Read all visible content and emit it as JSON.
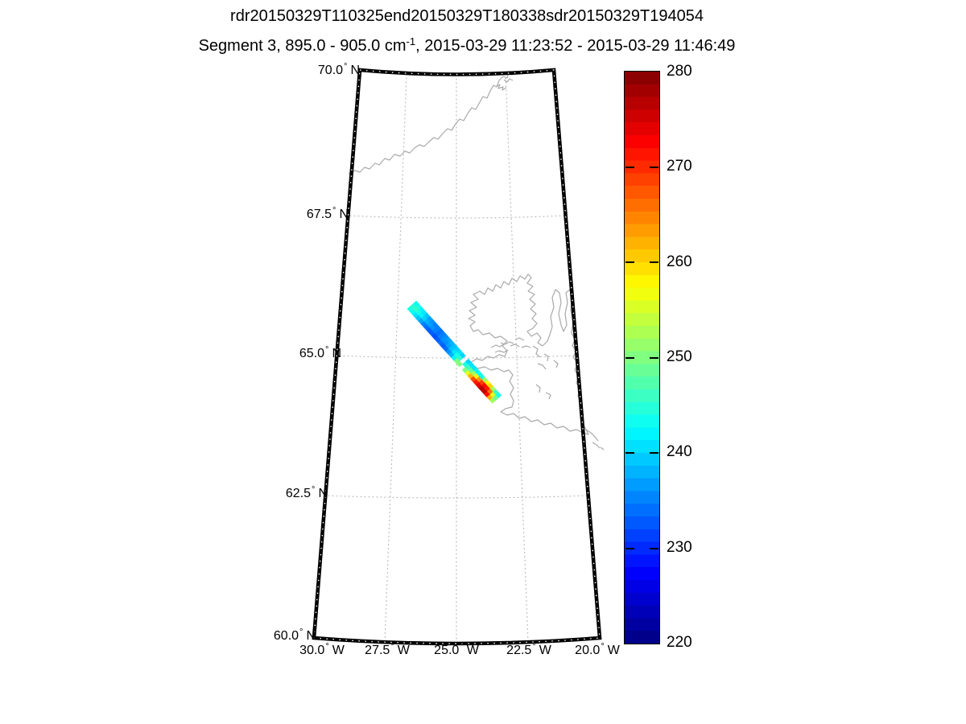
{
  "figure": {
    "title_line1": "rdr20150329T110325end20150329T180338sdr20150329T194054",
    "title_line2_pre": "Segment 3, 895.0 - 905.0 cm",
    "title_line2_sup": "-1",
    "title_line2_post": ", 2015-03-29 11:23:52 - 2015-03-29 11:46:49"
  },
  "map": {
    "lat_labels": [
      {
        "value": "70.0",
        "deg": "°",
        "dir": "N"
      },
      {
        "value": "67.5",
        "deg": "°",
        "dir": "N"
      },
      {
        "value": "65.0",
        "deg": "°",
        "dir": "N"
      },
      {
        "value": "62.5",
        "deg": "°",
        "dir": "N"
      },
      {
        "value": "60.0",
        "deg": "°",
        "dir": "N"
      }
    ],
    "lon_labels": [
      {
        "value": "30.0",
        "deg": "°",
        "dir": "W"
      },
      {
        "value": "27.5",
        "deg": "°",
        "dir": "W"
      },
      {
        "value": "25.0",
        "deg": "°",
        "dir": "W"
      },
      {
        "value": "22.5",
        "deg": "°",
        "dir": "W"
      },
      {
        "value": "20.0",
        "deg": "°",
        "dir": "W"
      }
    ],
    "coastline_color": "#a9a9a9",
    "grid_color": "#bcbcbc",
    "frame_color": "#000000"
  },
  "colorbar": {
    "labels": [
      "280",
      "270",
      "260",
      "250",
      "240",
      "230",
      "220"
    ]
  },
  "chart_data": {
    "type": "heatmap",
    "title": "rdr20150329T110325end20150329T180338sdr20150329T194054",
    "subtitle": "Segment 3, 895.0 - 905.0 cm-1, 2015-03-29 11:23:52 - 2015-03-29 11:46:49",
    "map_extent": {
      "lat_n": [
        60.0,
        70.0
      ],
      "lon_w": [
        30.0,
        20.0
      ]
    },
    "lat_gridlines": [
      62.5,
      65.0,
      67.5
    ],
    "lon_gridlines": [
      27.5,
      25.0,
      22.5
    ],
    "projection": "conic, pole up, central meridian 25.0 W",
    "colorbar": {
      "min": 220,
      "max": 280,
      "ticks": [
        220,
        230,
        240,
        250,
        260,
        270,
        280
      ],
      "colormap": "jet",
      "bands": 45
    },
    "coastlines": [
      "Greenland southeast coast crossing upper-left of map",
      "Iceland with Westfjords fjords, north peninsulas, southeast coast near right frame"
    ],
    "swath": {
      "description": "Diagonal NW-to-SE satellite measurement swath over west Iceland; values in colorbar units (220-280); null = missing scan gap",
      "col_order": "NE-edge to SW-edge",
      "origin": [
        517,
        374
      ],
      "angle_deg": 48,
      "cell_len": 5.1,
      "cell_w": 5.0,
      "cols": 3,
      "rows": [
        [
          243,
          245,
          244
        ],
        [
          244,
          246,
          243
        ],
        [
          242,
          244,
          241
        ],
        [
          241,
          242,
          239
        ],
        [
          239,
          240,
          237
        ],
        [
          237,
          238,
          235
        ],
        [
          236,
          237,
          234
        ],
        [
          235,
          236,
          233
        ],
        [
          235,
          235,
          233
        ],
        [
          234,
          234,
          232
        ],
        [
          235,
          235,
          233
        ],
        [
          236,
          236,
          234
        ],
        [
          237,
          236,
          233
        ],
        [
          238,
          237,
          234
        ],
        [
          239,
          239,
          236
        ],
        [
          240,
          241,
          238
        ],
        [
          241,
          244,
          242
        ],
        [
          240,
          245,
          250
        ],
        [
          null,
          null,
          250
        ],
        [
          240,
          244,
          null
        ],
        [
          241,
          246,
          250
        ],
        [
          241,
          248,
          256
        ],
        [
          242,
          252,
          262
        ],
        [
          243,
          258,
          268
        ],
        [
          244,
          264,
          271
        ],
        [
          252,
          269,
          274
        ],
        [
          258,
          272,
          277
        ],
        [
          260,
          271,
          276
        ],
        [
          252,
          266,
          272
        ],
        [
          246,
          256,
          262
        ],
        [
          244,
          249,
          252
        ]
      ]
    }
  }
}
